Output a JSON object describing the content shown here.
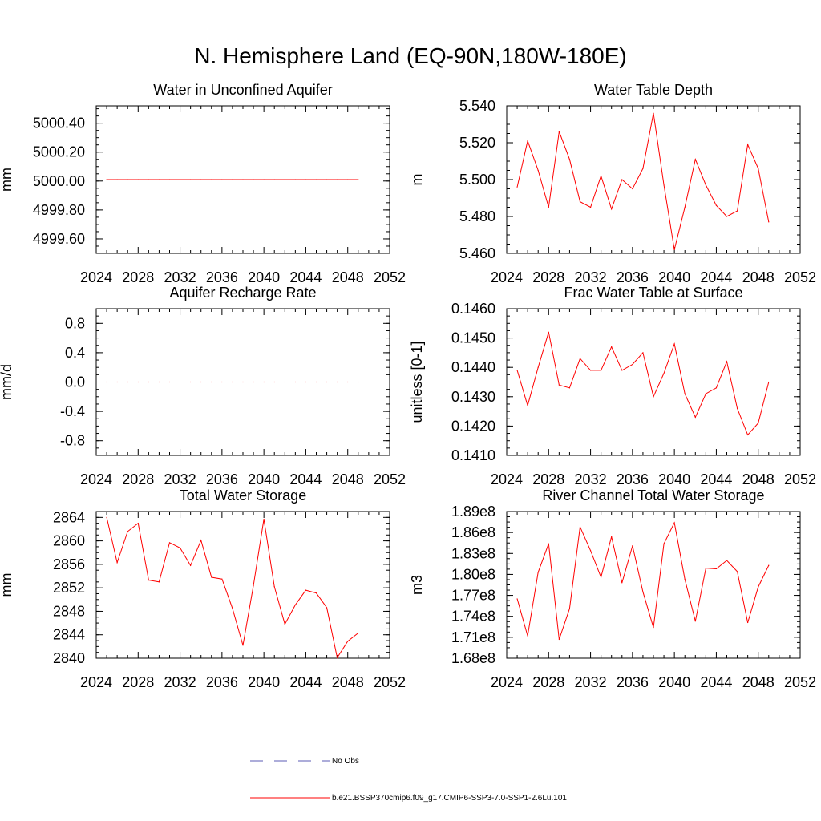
{
  "title": "N. Hemisphere Land (EQ-90N,180W-180E)",
  "legend": [
    {
      "label": "No Obs",
      "color": "#5b5bb5",
      "dash": true
    },
    {
      "label": "b.e21.BSSP370cmip6.f09_g17.CMIP6-SSP3-7.0-SSP1-2.6Lu.101",
      "color": "#ff0000",
      "dash": false
    }
  ],
  "chart_data": [
    {
      "type": "line",
      "title": "Water in Unconfined Aquifer",
      "ylabel": "mm",
      "xlim": [
        2024,
        2052
      ],
      "ylim": [
        4999.5,
        5000.52
      ],
      "xticks": [
        2024,
        2028,
        2032,
        2036,
        2040,
        2044,
        2048,
        2052
      ],
      "yticks": [
        4999.6,
        4999.8,
        5000.0,
        5000.2,
        5000.4
      ],
      "ytick_labels": [
        "4999.60",
        "4999.80",
        "5000.00",
        "5000.20",
        "5000.40"
      ],
      "series": [
        {
          "color": "#ff0000",
          "x": [
            2025,
            2026,
            2027,
            2028,
            2029,
            2030,
            2031,
            2032,
            2033,
            2034,
            2035,
            2036,
            2037,
            2038,
            2039,
            2040,
            2041,
            2042,
            2043,
            2044,
            2045,
            2046,
            2047,
            2048,
            2049
          ],
          "y": [
            5000.01,
            5000.01,
            5000.01,
            5000.01,
            5000.01,
            5000.01,
            5000.01,
            5000.01,
            5000.01,
            5000.01,
            5000.01,
            5000.01,
            5000.01,
            5000.01,
            5000.01,
            5000.01,
            5000.01,
            5000.01,
            5000.01,
            5000.01,
            5000.01,
            5000.01,
            5000.01,
            5000.01,
            5000.01
          ]
        }
      ]
    },
    {
      "type": "line",
      "title": "Water Table Depth",
      "ylabel": "m",
      "xlim": [
        2024,
        2052
      ],
      "ylim": [
        5.46,
        5.54
      ],
      "xticks": [
        2024,
        2028,
        2032,
        2036,
        2040,
        2044,
        2048,
        2052
      ],
      "yticks": [
        5.46,
        5.48,
        5.5,
        5.52,
        5.54
      ],
      "ytick_labels": [
        "5.460",
        "5.480",
        "5.500",
        "5.520",
        "5.540"
      ],
      "series": [
        {
          "color": "#ff0000",
          "x": [
            2025,
            2026,
            2027,
            2028,
            2029,
            2030,
            2031,
            2032,
            2033,
            2034,
            2035,
            2036,
            2037,
            2038,
            2039,
            2040,
            2041,
            2042,
            2043,
            2044,
            2045,
            2046,
            2047,
            2048,
            2049
          ],
          "y": [
            5.496,
            5.521,
            5.505,
            5.485,
            5.526,
            5.511,
            5.488,
            5.485,
            5.502,
            5.484,
            5.5,
            5.495,
            5.506,
            5.536,
            5.497,
            5.462,
            5.485,
            5.511,
            5.497,
            5.486,
            5.48,
            5.483,
            5.519,
            5.506,
            5.477
          ]
        }
      ]
    },
    {
      "type": "line",
      "title": "Aquifer Recharge Rate",
      "ylabel": "mm/d",
      "xlim": [
        2024,
        2052
      ],
      "ylim": [
        -1.0,
        1.0
      ],
      "xticks": [
        2024,
        2028,
        2032,
        2036,
        2040,
        2044,
        2048,
        2052
      ],
      "yticks": [
        -0.8,
        -0.4,
        0.0,
        0.4,
        0.8
      ],
      "ytick_labels": [
        "-0.8",
        "-0.4",
        "0.0",
        "0.4",
        "0.8"
      ],
      "series": [
        {
          "color": "#ff0000",
          "x": [
            2025,
            2026,
            2027,
            2028,
            2029,
            2030,
            2031,
            2032,
            2033,
            2034,
            2035,
            2036,
            2037,
            2038,
            2039,
            2040,
            2041,
            2042,
            2043,
            2044,
            2045,
            2046,
            2047,
            2048,
            2049
          ],
          "y": [
            0.0,
            0.0,
            0.0,
            0.0,
            0.0,
            0.0,
            0.0,
            0.0,
            0.0,
            0.0,
            0.0,
            0.0,
            0.0,
            0.0,
            0.0,
            0.0,
            0.0,
            0.0,
            0.0,
            0.0,
            0.0,
            0.0,
            0.0,
            0.0,
            0.0
          ]
        }
      ]
    },
    {
      "type": "line",
      "title": "Frac Water Table at Surface",
      "ylabel": "unitless [0-1]",
      "xlim": [
        2024,
        2052
      ],
      "ylim": [
        0.141,
        0.146
      ],
      "xticks": [
        2024,
        2028,
        2032,
        2036,
        2040,
        2044,
        2048,
        2052
      ],
      "yticks": [
        0.141,
        0.142,
        0.143,
        0.144,
        0.145,
        0.146
      ],
      "ytick_labels": [
        "0.1410",
        "0.1420",
        "0.1430",
        "0.1440",
        "0.1450",
        "0.1460"
      ],
      "series": [
        {
          "color": "#ff0000",
          "x": [
            2025,
            2026,
            2027,
            2028,
            2029,
            2030,
            2031,
            2032,
            2033,
            2034,
            2035,
            2036,
            2037,
            2038,
            2039,
            2040,
            2041,
            2042,
            2043,
            2044,
            2045,
            2046,
            2047,
            2048,
            2049
          ],
          "y": [
            0.1439,
            0.1427,
            0.144,
            0.1452,
            0.1434,
            0.1433,
            0.1443,
            0.1439,
            0.1439,
            0.1447,
            0.1439,
            0.1441,
            0.1445,
            0.143,
            0.1438,
            0.1448,
            0.1431,
            0.1423,
            0.1431,
            0.1433,
            0.1442,
            0.1426,
            0.1417,
            0.1421,
            0.1435
          ]
        }
      ]
    },
    {
      "type": "line",
      "title": "Total Water Storage",
      "ylabel": "mm",
      "xlim": [
        2024,
        2052
      ],
      "ylim": [
        2840,
        2865
      ],
      "xticks": [
        2024,
        2028,
        2032,
        2036,
        2040,
        2044,
        2048,
        2052
      ],
      "yticks": [
        2840,
        2844,
        2848,
        2852,
        2856,
        2860,
        2864
      ],
      "ytick_labels": [
        "2840",
        "2844",
        "2848",
        "2852",
        "2856",
        "2860",
        "2864"
      ],
      "series": [
        {
          "color": "#ff0000",
          "x": [
            2025,
            2026,
            2027,
            2028,
            2029,
            2030,
            2031,
            2032,
            2033,
            2034,
            2035,
            2036,
            2037,
            2038,
            2039,
            2040,
            2041,
            2042,
            2043,
            2044,
            2045,
            2046,
            2047,
            2048,
            2049
          ],
          "y": [
            2864.0,
            2856.3,
            2861.6,
            2863.0,
            2853.3,
            2853.0,
            2859.7,
            2858.8,
            2855.8,
            2860.1,
            2853.8,
            2853.5,
            2848.5,
            2842.2,
            2852.4,
            2863.7,
            2852.2,
            2845.8,
            2849.1,
            2851.6,
            2851.1,
            2848.6,
            2840.1,
            2842.9,
            2844.3
          ]
        }
      ]
    },
    {
      "type": "line",
      "title": "River Channel Total Water Storage",
      "ylabel": "m3",
      "xlim": [
        2024,
        2052
      ],
      "ylim": [
        168000000,
        189000000
      ],
      "xticks": [
        2024,
        2028,
        2032,
        2036,
        2040,
        2044,
        2048,
        2052
      ],
      "yticks": [
        168000000,
        171000000,
        174000000,
        177000000,
        180000000,
        183000000,
        186000000,
        189000000
      ],
      "ytick_labels": [
        "1.68e8",
        "1.71e8",
        "1.74e8",
        "1.77e8",
        "1.80e8",
        "1.83e8",
        "1.86e8",
        "1.89e8"
      ],
      "series": [
        {
          "color": "#ff0000",
          "x": [
            2025,
            2026,
            2027,
            2028,
            2029,
            2030,
            2031,
            2032,
            2033,
            2034,
            2035,
            2036,
            2037,
            2038,
            2039,
            2040,
            2041,
            2042,
            2043,
            2044,
            2045,
            2046,
            2047,
            2048,
            2049
          ],
          "y": [
            176500000,
            171200000,
            180300000,
            184400000,
            170700000,
            175100000,
            186800000,
            183400000,
            179600000,
            185400000,
            178800000,
            184100000,
            177500000,
            172400000,
            184400000,
            187400000,
            179300000,
            173300000,
            180900000,
            180800000,
            182000000,
            180400000,
            173100000,
            178200000,
            181300000
          ]
        }
      ]
    }
  ]
}
